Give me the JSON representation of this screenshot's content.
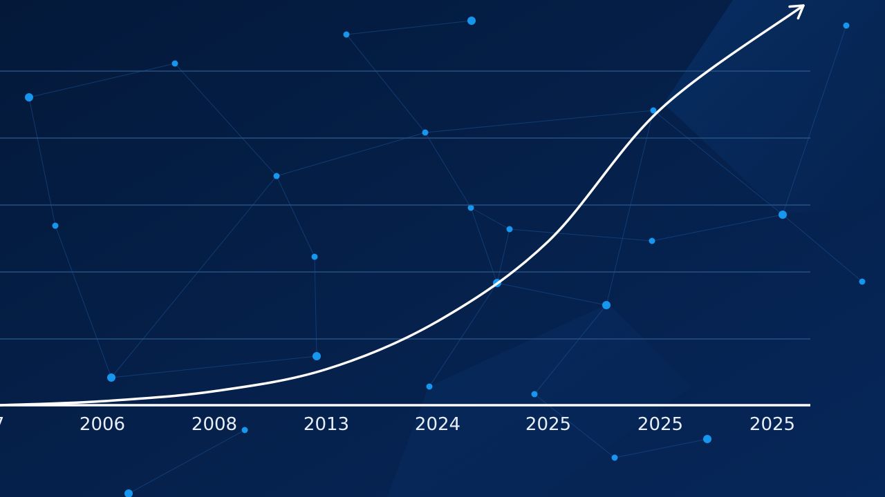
{
  "chart_data": {
    "type": "line",
    "title": "",
    "xlabel": "",
    "ylabel": "",
    "x_tick_labels": [
      "7",
      "2006",
      "2008",
      "2013",
      "2024",
      "2025",
      "2025",
      "2025"
    ],
    "series": [
      {
        "x": [
          0,
          1,
          2,
          3,
          4,
          5,
          6,
          6.5
        ],
        "y": [
          0,
          0.1,
          0.35,
          0.9,
          2.1,
          4.1,
          7.4,
          10.0
        ]
      }
    ],
    "ylim": [
      0,
      10
    ],
    "grid": true,
    "legend": "none",
    "colors": {
      "background_top": "#04193a",
      "background_bottom": "#06275a",
      "curve": "#ffffff",
      "axis": "#ffffff",
      "grid": "#2a5487",
      "node": "#1aa3ff",
      "mesh_line": "#1f5fa8"
    }
  }
}
